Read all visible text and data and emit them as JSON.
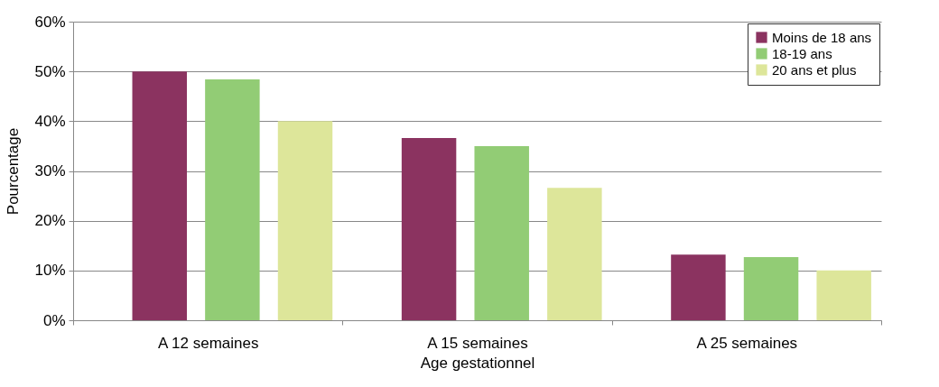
{
  "chart_data": {
    "type": "bar",
    "xlabel": "Age gestationnel",
    "ylabel": "Pourcentage",
    "categories": [
      "A 12 semaines",
      "A 15 semaines",
      "A 25 semaines"
    ],
    "series": [
      {
        "name": "Moins de 18 ans",
        "color": "#8b3360",
        "values": [
          50.0,
          36.6,
          13.2
        ]
      },
      {
        "name": "18-19 ans",
        "color": "#92cc75",
        "values": [
          48.4,
          35.0,
          12.7
        ]
      },
      {
        "name": "20 ans et plus",
        "color": "#dde69a",
        "values": [
          40.0,
          26.6,
          10.0
        ]
      }
    ],
    "ylim": [
      0,
      60
    ],
    "yticks": [
      {
        "value": 0,
        "label": "0%"
      },
      {
        "value": 10,
        "label": "10%"
      },
      {
        "value": 20,
        "label": "20%"
      },
      {
        "value": 30,
        "label": "30%"
      },
      {
        "value": 40,
        "label": "40%"
      },
      {
        "value": 50,
        "label": "50%"
      },
      {
        "value": 60,
        "label": "60%"
      }
    ],
    "grid": "y",
    "legend": "top right"
  }
}
